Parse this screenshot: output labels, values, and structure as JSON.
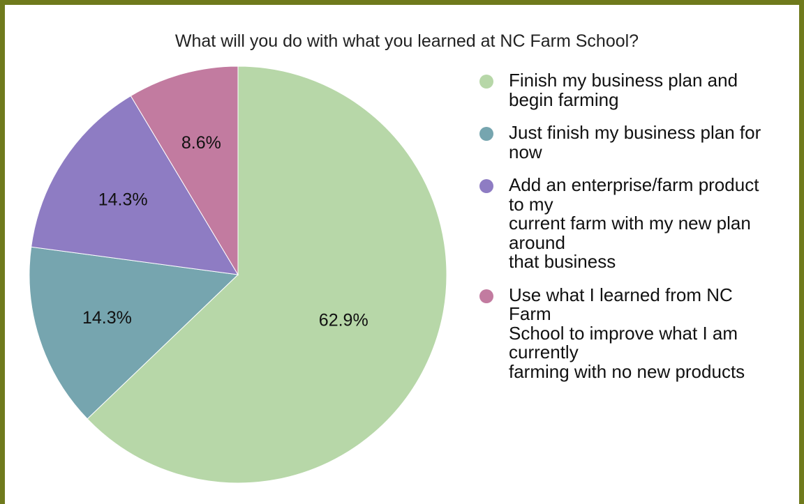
{
  "chart_data": {
    "type": "pie",
    "title": "What will you do with what you learned at NC Farm School?",
    "slices": [
      {
        "label": "Finish my business plan and\nbegin farming",
        "value": 62.9,
        "display": "62.9%",
        "color": "#b7d7a8"
      },
      {
        "label": "Just finish my business plan for\nnow",
        "value": 14.3,
        "display": "14.3%",
        "color": "#76a5af"
      },
      {
        "label": "Add an enterprise/farm product\nto my\ncurrent farm with my new plan\naround\nthat business",
        "value": 14.3,
        "display": "14.3%",
        "color": "#8e7cc3"
      },
      {
        "label": "Use what I learned from NC\nFarm\nSchool to improve what I am\ncurrently\nfarming with no new products",
        "value": 8.6,
        "display": "8.6%",
        "color": "#c27ba0"
      }
    ],
    "legend_position": "right"
  },
  "frame_color": "#6f7a1c"
}
